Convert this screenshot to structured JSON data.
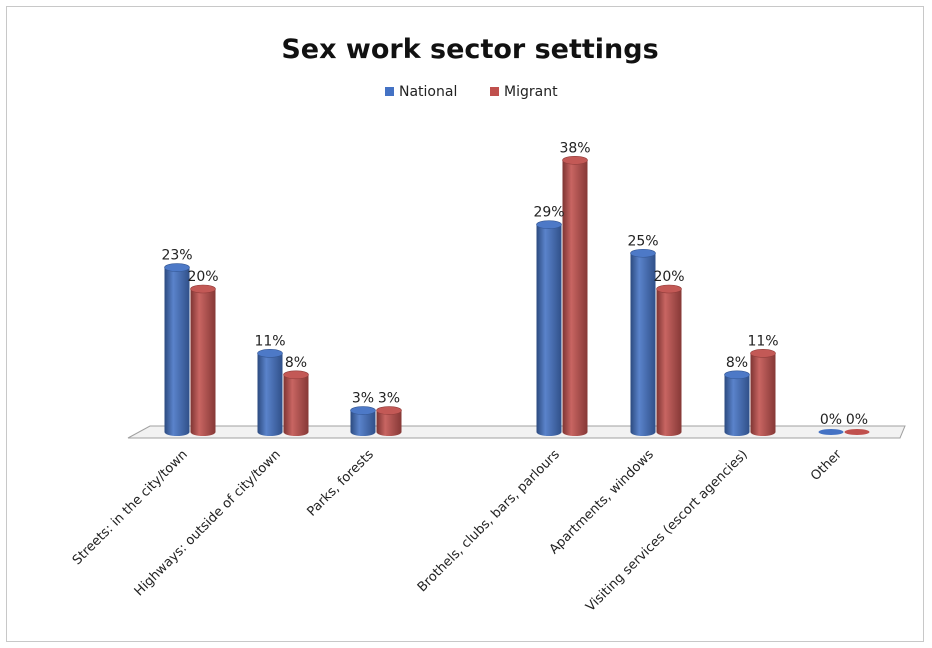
{
  "chart_data": {
    "type": "bar",
    "title": "Sex work sector settings",
    "categories": [
      "Streets: in the city/town",
      "Highways: outside of city/town",
      "Parks, forests",
      "Brothels, clubs, bars, parlours",
      "Apartments, windows",
      "Visiting services (escort agencies)",
      "Other"
    ],
    "series": [
      {
        "name": "National",
        "color": "#4472c4",
        "values": [
          23,
          11,
          3,
          29,
          25,
          8,
          0
        ],
        "labels": [
          "23%",
          "11%",
          "3%",
          "29%",
          "25%",
          "8%",
          "0%"
        ]
      },
      {
        "name": "Migrant",
        "color": "#c0504d",
        "values": [
          20,
          8,
          3,
          38,
          20,
          11,
          0
        ],
        "labels": [
          "20%",
          "8%",
          "3%",
          "38%",
          "20%",
          "11%",
          "0%"
        ]
      }
    ],
    "ylim": [
      0,
      38
    ],
    "legend_position": "top",
    "grid": false,
    "style": "3d-cylinder"
  }
}
